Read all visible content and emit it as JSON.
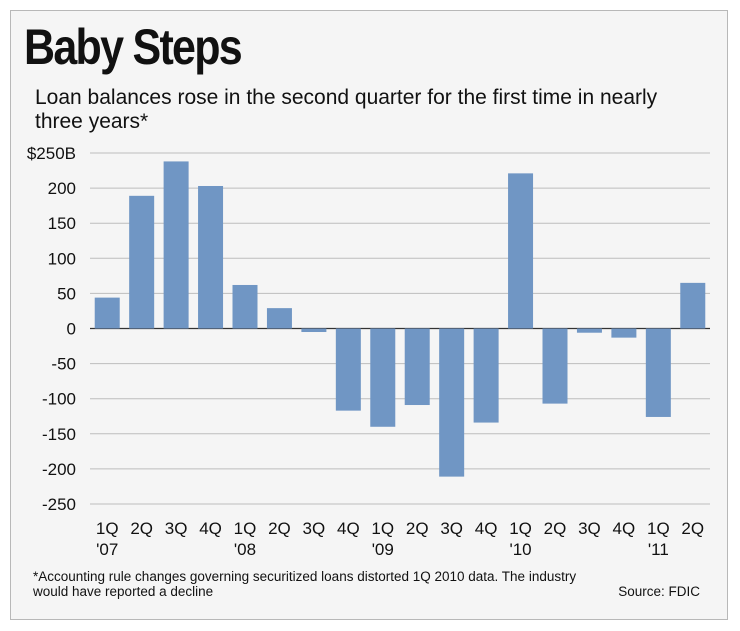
{
  "chart_data": {
    "type": "bar",
    "title": "Baby Steps",
    "subtitle": "Loan balances rose in the second quarter for the first time in nearly three years*",
    "ylabel": "",
    "xlabel": "",
    "ylim": [
      -250,
      250
    ],
    "yticks": [
      250,
      200,
      150,
      100,
      50,
      0,
      -50,
      -100,
      -150,
      -200,
      -250
    ],
    "ytick_labels": [
      "$250B",
      "200",
      "150",
      "100",
      "50",
      "0",
      "-50",
      "-100",
      "-150",
      "-200",
      "-250"
    ],
    "categories": [
      "1Q '07",
      "2Q",
      "3Q",
      "4Q",
      "1Q '08",
      "2Q",
      "3Q",
      "4Q",
      "1Q '09",
      "2Q",
      "3Q",
      "4Q",
      "1Q '10",
      "2Q",
      "3Q",
      "4Q",
      "1Q '11",
      "2Q"
    ],
    "quarter_labels": [
      "1Q",
      "2Q",
      "3Q",
      "4Q",
      "1Q",
      "2Q",
      "3Q",
      "4Q",
      "1Q",
      "2Q",
      "3Q",
      "4Q",
      "1Q",
      "2Q",
      "3Q",
      "4Q",
      "1Q",
      "2Q"
    ],
    "year_labels": [
      {
        "index": 0,
        "label": "'07"
      },
      {
        "index": 4,
        "label": "'08"
      },
      {
        "index": 8,
        "label": "'09"
      },
      {
        "index": 12,
        "label": "'10"
      },
      {
        "index": 16,
        "label": "'11"
      }
    ],
    "values": [
      44,
      189,
      238,
      203,
      62,
      29,
      -5,
      -117,
      -140,
      -109,
      -211,
      -134,
      221,
      -107,
      -6,
      -13,
      -126,
      65
    ],
    "bar_color": "#7096c4",
    "grid": true,
    "footnote": "*Accounting rule changes governing securitized loans distorted 1Q 2010 data. The industry would have reported a decline",
    "source": "Source: FDIC"
  }
}
